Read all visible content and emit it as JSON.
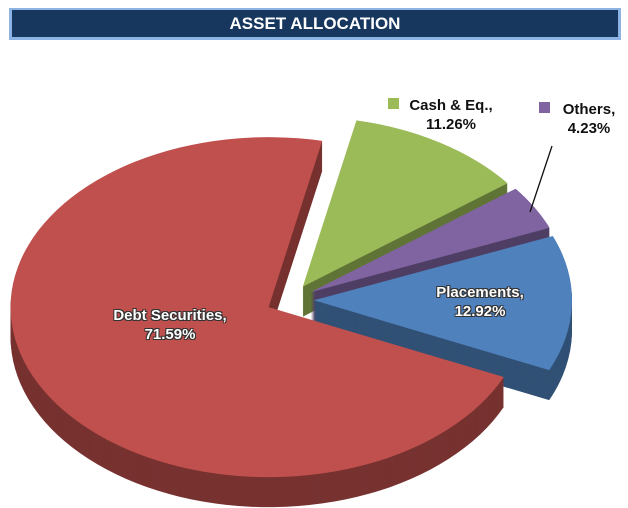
{
  "chart_data": {
    "type": "pie",
    "title": "ASSET ALLOCATION",
    "categories": [
      "Cash & Eq.,",
      "Others,",
      "Placements,",
      "Debt Securities,"
    ],
    "values": [
      11.26,
      4.23,
      12.92,
      71.59
    ],
    "value_labels": [
      "11.26%",
      "4.23%",
      "12.92%",
      "71.59%"
    ],
    "colors": [
      "#9bbb59",
      "#8064a2",
      "#4f81bd",
      "#c0504d"
    ]
  }
}
